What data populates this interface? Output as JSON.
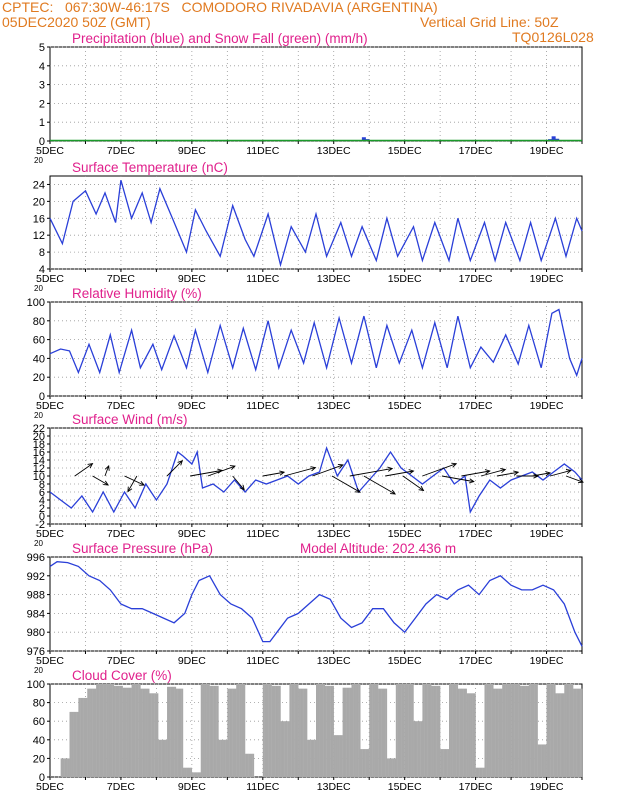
{
  "header": {
    "line1": "CPTEC:   067:30W-46:17S   COMODORO RIVADAVIA (ARGENTINA)",
    "line2_left": "05DEC2020 50Z (GMT)",
    "line2_right": "Vertical Grid Line: 50Z",
    "code": "TQ0126L028"
  },
  "colors": {
    "header": "#e07a20",
    "title": "#e0208c",
    "line": "#2a3fd8",
    "snow": "#1a9a2a",
    "cloud": "#a9a9a9",
    "text": "#000000"
  },
  "x_ticks": [
    "5DEC",
    "7DEC",
    "9DEC",
    "11DEC",
    "13DEC",
    "15DEC",
    "17DEC",
    "19DEC"
  ],
  "chart_data": [
    {
      "type": "bar",
      "title": "Precipitation (blue) and Snow Fall (green) (mm/h)",
      "xlabel": "",
      "ylabel": "",
      "ylim": [
        0,
        5
      ],
      "yticks": [
        0,
        1,
        2,
        3,
        4,
        5
      ],
      "grid": true,
      "series": [
        {
          "name": "Precipitation",
          "x": [
            13.75,
            13.85,
            13.95,
            19.1,
            19.2,
            19.3
          ],
          "values": [
            0.05,
            0.2,
            0.1,
            0.1,
            0.25,
            0.12
          ]
        },
        {
          "name": "Snow Fall",
          "x": [],
          "values": []
        }
      ]
    },
    {
      "type": "line",
      "title": "Surface Temperature (nC)",
      "xlabel": "",
      "ylabel": "",
      "ylim": [
        4,
        26
      ],
      "yticks": [
        4,
        8,
        12,
        16,
        20,
        24
      ],
      "grid": true,
      "x": [
        5.0,
        5.35,
        5.65,
        6.0,
        6.3,
        6.55,
        6.85,
        7.0,
        7.3,
        7.6,
        7.85,
        8.1,
        8.45,
        8.85,
        9.1,
        9.4,
        9.8,
        10.15,
        10.5,
        10.75,
        11.15,
        11.5,
        11.8,
        12.2,
        12.5,
        12.8,
        13.2,
        13.5,
        13.8,
        14.2,
        14.5,
        14.8,
        15.25,
        15.5,
        15.85,
        16.25,
        16.5,
        16.85,
        17.25,
        17.55,
        17.85,
        18.25,
        18.55,
        18.85,
        19.25,
        19.55,
        19.85,
        20.0
      ],
      "values": [
        16,
        10,
        20,
        22.5,
        17,
        22,
        15,
        25,
        16,
        22,
        15,
        23,
        16,
        8,
        18,
        13,
        7,
        19,
        11,
        7,
        17,
        5,
        14,
        8,
        17,
        7,
        15,
        7,
        14,
        6,
        16,
        7,
        14,
        6,
        15,
        6,
        16,
        6,
        15,
        6,
        15,
        6,
        15,
        6,
        16,
        7,
        16,
        13
      ]
    },
    {
      "type": "line",
      "title": "Relative Humidity (%)",
      "xlabel": "",
      "ylabel": "",
      "ylim": [
        0,
        100
      ],
      "yticks": [
        0,
        20,
        40,
        60,
        80,
        100
      ],
      "grid": true,
      "x": [
        5.0,
        5.3,
        5.55,
        5.8,
        6.1,
        6.4,
        6.7,
        6.95,
        7.3,
        7.55,
        7.9,
        8.15,
        8.5,
        8.85,
        9.1,
        9.45,
        9.8,
        10.15,
        10.45,
        10.8,
        11.15,
        11.45,
        11.8,
        12.15,
        12.45,
        12.8,
        13.15,
        13.5,
        13.85,
        14.2,
        14.5,
        14.85,
        15.2,
        15.5,
        15.85,
        16.2,
        16.5,
        16.85,
        17.15,
        17.5,
        17.85,
        18.2,
        18.5,
        18.85,
        19.15,
        19.35,
        19.65,
        19.85,
        20.0
      ],
      "values": [
        45,
        50,
        48,
        25,
        55,
        25,
        65,
        25,
        70,
        30,
        55,
        28,
        64,
        30,
        70,
        25,
        75,
        30,
        72,
        28,
        80,
        30,
        70,
        35,
        78,
        30,
        83,
        35,
        85,
        30,
        75,
        35,
        70,
        30,
        78,
        30,
        85,
        30,
        52,
        36,
        65,
        34,
        75,
        30,
        88,
        92,
        40,
        22,
        40
      ]
    },
    {
      "type": "line",
      "title": "Surface Wind (m/s)",
      "xlabel": "",
      "ylabel": "",
      "ylim": [
        -2,
        22
      ],
      "yticks": [
        -2,
        0,
        2,
        4,
        6,
        8,
        10,
        12,
        14,
        16,
        18,
        20,
        22
      ],
      "grid": true,
      "x": [
        5.0,
        5.3,
        5.6,
        5.9,
        6.2,
        6.5,
        6.8,
        7.1,
        7.4,
        7.7,
        8.0,
        8.3,
        8.6,
        8.75,
        9.0,
        9.15,
        9.3,
        9.6,
        9.9,
        10.2,
        10.5,
        10.8,
        11.1,
        11.4,
        11.7,
        12.0,
        12.3,
        12.6,
        12.8,
        13.1,
        13.4,
        13.7,
        14.0,
        14.3,
        14.6,
        14.9,
        15.2,
        15.5,
        15.8,
        16.1,
        16.4,
        16.7,
        16.85,
        17.1,
        17.4,
        17.7,
        18.0,
        18.3,
        18.6,
        18.9,
        19.2,
        19.5,
        19.8,
        20.0
      ],
      "values": [
        6,
        4,
        2,
        5,
        1,
        6,
        1,
        6,
        2,
        8,
        4,
        8,
        16,
        15,
        13,
        16,
        7,
        8,
        6,
        9,
        6,
        9,
        8,
        9,
        10,
        8,
        10,
        11,
        17,
        10,
        14,
        6,
        9,
        12,
        16,
        12,
        10,
        8,
        10,
        12,
        8,
        10,
        1,
        5,
        9,
        7,
        9,
        10,
        11,
        9,
        11,
        13,
        11,
        9
      ],
      "vectors": [
        {
          "x": 5.7,
          "speed": 6,
          "dir_deg": 55
        },
        {
          "x": 6.2,
          "speed": 5,
          "dir_deg": 120
        },
        {
          "x": 6.55,
          "speed": 3,
          "dir_deg": 20
        },
        {
          "x": 7.1,
          "speed": 6,
          "dir_deg": 115
        },
        {
          "x": 7.45,
          "speed": 5,
          "dir_deg": 210
        },
        {
          "x": 8.3,
          "speed": 6,
          "dir_deg": 45
        },
        {
          "x": 8.95,
          "speed": 9,
          "dir_deg": 80
        },
        {
          "x": 9.45,
          "speed": 8,
          "dir_deg": 70
        },
        {
          "x": 10.15,
          "speed": 5,
          "dir_deg": 140
        },
        {
          "x": 11.0,
          "speed": 6,
          "dir_deg": 80
        },
        {
          "x": 11.6,
          "speed": 9,
          "dir_deg": 75
        },
        {
          "x": 12.4,
          "speed": 9,
          "dir_deg": 70
        },
        {
          "x": 12.95,
          "speed": 9,
          "dir_deg": 120
        },
        {
          "x": 13.45,
          "speed": 12,
          "dir_deg": 80
        },
        {
          "x": 13.85,
          "speed": 10,
          "dir_deg": 120
        },
        {
          "x": 14.45,
          "speed": 8,
          "dir_deg": 80
        },
        {
          "x": 14.95,
          "speed": 7,
          "dir_deg": 125
        },
        {
          "x": 15.5,
          "speed": 10,
          "dir_deg": 70
        },
        {
          "x": 16.05,
          "speed": 9,
          "dir_deg": 100
        },
        {
          "x": 16.6,
          "speed": 8,
          "dir_deg": 80
        },
        {
          "x": 17.15,
          "speed": 7,
          "dir_deg": 75
        },
        {
          "x": 17.6,
          "speed": 6,
          "dir_deg": 80
        },
        {
          "x": 18.15,
          "speed": 6,
          "dir_deg": 90
        },
        {
          "x": 18.6,
          "speed": 5,
          "dir_deg": 80
        },
        {
          "x": 19.1,
          "speed": 6,
          "dir_deg": 75
        },
        {
          "x": 19.55,
          "speed": 5,
          "dir_deg": 110
        }
      ]
    },
    {
      "type": "line",
      "title": "Surface Pressure (hPa)",
      "annotation": "Model Altitude: 202.436 m",
      "xlabel": "",
      "ylabel": "",
      "ylim": [
        976,
        996
      ],
      "yticks": [
        976,
        980,
        984,
        988,
        992,
        996
      ],
      "grid": true,
      "x": [
        5.0,
        5.2,
        5.5,
        5.8,
        6.1,
        6.4,
        6.7,
        7.0,
        7.3,
        7.6,
        7.9,
        8.2,
        8.5,
        8.8,
        9.0,
        9.2,
        9.5,
        9.8,
        10.1,
        10.4,
        10.7,
        11.0,
        11.2,
        11.4,
        11.7,
        12.0,
        12.3,
        12.6,
        12.9,
        13.2,
        13.5,
        13.8,
        14.1,
        14.4,
        14.7,
        15.0,
        15.3,
        15.6,
        15.9,
        16.2,
        16.5,
        16.8,
        17.1,
        17.4,
        17.7,
        18.0,
        18.3,
        18.6,
        18.9,
        19.2,
        19.5,
        19.8,
        20.0
      ],
      "values": [
        994,
        995,
        994.8,
        994,
        992,
        991,
        989,
        986,
        985,
        985,
        984,
        983,
        982,
        984,
        988,
        991,
        992,
        988,
        986,
        985,
        983,
        978,
        978,
        980,
        983,
        984,
        986,
        988,
        987,
        983,
        981,
        982,
        985,
        985,
        982,
        980,
        983,
        986,
        988,
        987,
        989,
        990,
        988,
        991,
        992,
        990,
        989,
        989,
        990,
        989,
        986,
        980,
        977
      ]
    },
    {
      "type": "bar",
      "title": "Cloud Cover (%)",
      "xlabel": "",
      "ylabel": "",
      "ylim": [
        0,
        100
      ],
      "yticks": [
        0,
        20,
        40,
        60,
        80,
        100
      ],
      "grid": true,
      "x": [
        5.0,
        5.25,
        5.5,
        5.75,
        6.0,
        6.25,
        6.5,
        6.75,
        7.0,
        7.25,
        7.5,
        7.75,
        8.0,
        8.25,
        8.5,
        8.75,
        9.0,
        9.25,
        9.5,
        9.75,
        10.0,
        10.25,
        10.5,
        10.75,
        11.0,
        11.25,
        11.5,
        11.75,
        12.0,
        12.25,
        12.5,
        12.75,
        13.0,
        13.25,
        13.5,
        13.75,
        14.0,
        14.25,
        14.5,
        14.75,
        15.0,
        15.25,
        15.5,
        15.75,
        16.0,
        16.25,
        16.5,
        16.75,
        17.0,
        17.25,
        17.5,
        17.75,
        18.0,
        18.25,
        18.5,
        18.75,
        19.0,
        19.25,
        19.5,
        19.75
      ],
      "values": [
        0,
        20,
        70,
        85,
        95,
        100,
        100,
        98,
        96,
        100,
        95,
        90,
        40,
        97,
        95,
        10,
        5,
        100,
        98,
        40,
        95,
        100,
        25,
        0,
        100,
        98,
        60,
        100,
        95,
        40,
        100,
        98,
        45,
        96,
        100,
        30,
        100,
        95,
        20,
        100,
        100,
        60,
        100,
        98,
        30,
        100,
        95,
        90,
        10,
        100,
        95,
        100,
        100,
        98,
        100,
        35,
        100,
        90,
        100,
        95
      ]
    }
  ]
}
